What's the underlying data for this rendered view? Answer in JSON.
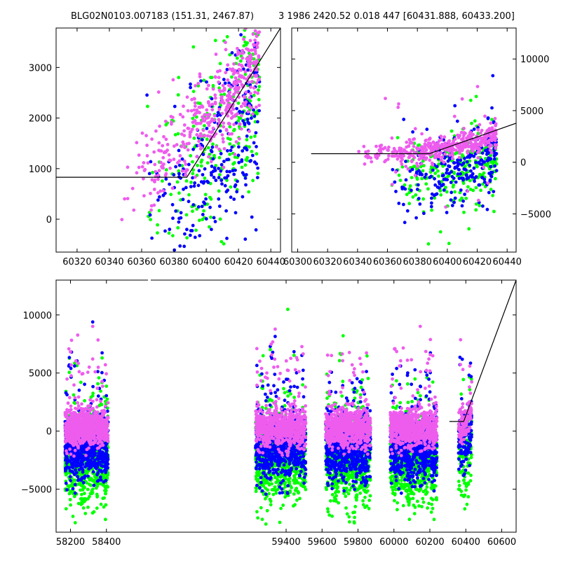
{
  "figure": {
    "title_left": "BLG02N0103.007183 (151.31, 2467.87)",
    "title_right": "3 1986 2420.52 0.018 447 [60431.888, 60433.200]"
  },
  "colors": {
    "series_green": "#00ff00",
    "series_blue": "#0000ff",
    "series_magenta": "#ee5cee",
    "model_line": "#000000"
  },
  "chart_data": [
    {
      "id": "top-left",
      "type": "scatter",
      "title": "",
      "xlabel": "",
      "ylabel": "",
      "xlim": [
        60307,
        60446
      ],
      "ylim": [
        -650,
        3780
      ],
      "yaxis": "left",
      "xticks": [
        60320,
        60340,
        60360,
        60380,
        60400,
        60420,
        60440
      ],
      "yticks": [
        0,
        1000,
        2000,
        3000
      ],
      "model_line": [
        [
          60307,
          830
        ],
        [
          60388,
          830
        ],
        [
          60446,
          3780
        ]
      ],
      "series": [
        {
          "color": "green",
          "x_range": [
            60360,
            60433
          ],
          "trend": "rising",
          "y_at_start": 300,
          "y_at_end": 3000
        },
        {
          "color": "blue",
          "x_range": [
            60362,
            60433
          ],
          "trend": "rising",
          "y_at_start": 0,
          "y_at_end": 2200
        },
        {
          "color": "magenta",
          "x_range": [
            60345,
            60433
          ],
          "trend": "rising",
          "y_at_start": 800,
          "y_at_end": 3200
        }
      ]
    },
    {
      "id": "top-right",
      "type": "scatter",
      "title": "",
      "xlabel": "",
      "ylabel": "",
      "xlim": [
        60296,
        60446
      ],
      "ylim": [
        -8700,
        13000
      ],
      "yaxis": "right",
      "xticks": [
        60300,
        60320,
        60340,
        60360,
        60380,
        60400,
        60420,
        60440
      ],
      "yticks": [
        -5000,
        0,
        5000,
        10000
      ],
      "model_line": [
        [
          60309,
          830
        ],
        [
          60388,
          830
        ],
        [
          60446,
          3780
        ]
      ],
      "series": [
        {
          "color": "green",
          "x_range": [
            60360,
            60433
          ],
          "center_start": -1500,
          "center_end": 300
        },
        {
          "color": "blue",
          "x_range": [
            60362,
            60433
          ],
          "center_start": -1800,
          "center_end": 1000
        },
        {
          "color": "magenta",
          "x_range": [
            60340,
            60433
          ],
          "center_start": 600,
          "center_end": 2400
        }
      ]
    },
    {
      "id": "bottom",
      "type": "scatter",
      "title": "",
      "xlabel": "",
      "ylabel": "",
      "xlim": [
        58120,
        60680
      ],
      "ylim": [
        -8700,
        13000
      ],
      "yaxis": "left",
      "xticks": [
        58200,
        58400,
        59400,
        59600,
        59800,
        60000,
        60200,
        60400,
        60600
      ],
      "xtick_labels_pos": [
        58200,
        58400,
        59400,
        59600,
        59800,
        60000,
        60200,
        60400,
        60600
      ],
      "yticks": [
        -5000,
        0,
        5000,
        10000
      ],
      "model_line": [
        [
          60309,
          830
        ],
        [
          60388,
          830
        ],
        [
          60680,
          13000
        ]
      ],
      "seasons": [
        {
          "x_range": [
            58170,
            58410
          ]
        },
        {
          "x_range": [
            59230,
            59510
          ]
        },
        {
          "x_range": [
            59620,
            59870
          ]
        },
        {
          "x_range": [
            59980,
            60240
          ]
        },
        {
          "x_range": [
            60360,
            60433
          ]
        }
      ],
      "series": [
        {
          "color": "green",
          "center": -2500,
          "spread": 3500
        },
        {
          "color": "blue",
          "center": -1500,
          "spread": 2500
        },
        {
          "color": "magenta",
          "center": 200,
          "spread": 1500
        }
      ]
    }
  ]
}
